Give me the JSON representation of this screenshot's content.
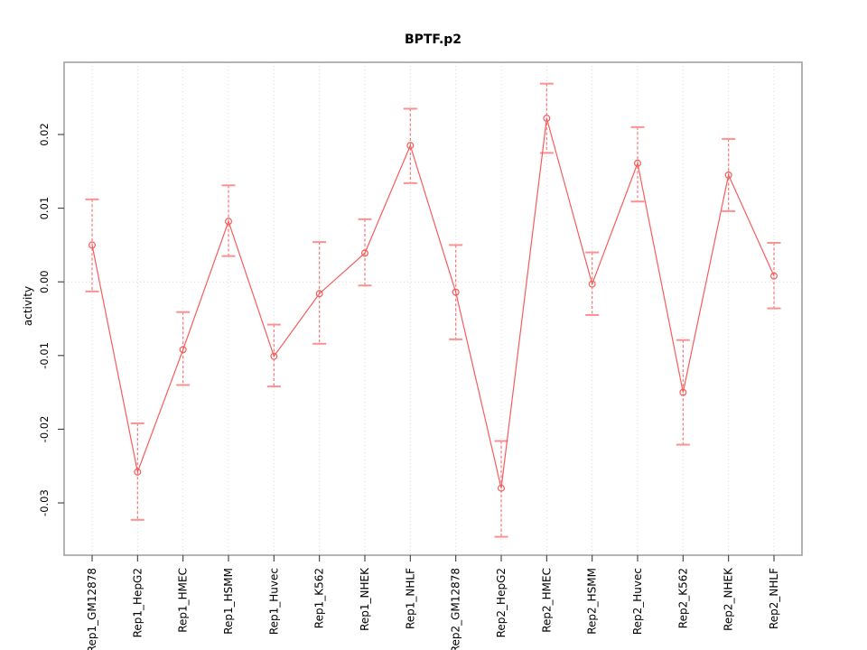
{
  "title": "BPTF.p2",
  "chart_data": {
    "type": "line",
    "title": "BPTF.p2",
    "xlabel": "",
    "ylabel": "activity",
    "categories": [
      "Rep1_GM12878",
      "Rep1_HepG2",
      "Rep1_HMEC",
      "Rep1_HSMM",
      "Rep1_Huvec",
      "Rep1_K562",
      "Rep1_NHEK",
      "Rep1_NHLF",
      "Rep2_GM12878",
      "Rep2_HepG2",
      "Rep2_HMEC",
      "Rep2_HSMM",
      "Rep2_Huvec",
      "Rep2_K562",
      "Rep2_NHEK",
      "Rep2_NHLF"
    ],
    "series": [
      {
        "name": "activity",
        "marker": "open-circle",
        "values": [
          0.005,
          -0.0258,
          -0.0092,
          0.0082,
          -0.0101,
          -0.0016,
          0.0039,
          0.0185,
          -0.0014,
          -0.028,
          0.0222,
          -0.0003,
          0.0161,
          -0.015,
          0.0145,
          0.0008
        ],
        "error_high": [
          0.0112,
          -0.0192,
          -0.0041,
          0.0131,
          -0.0058,
          0.0054,
          0.0085,
          0.0235,
          0.005,
          -0.0216,
          0.0269,
          0.004,
          0.021,
          -0.0079,
          0.0194,
          0.0053
        ],
        "error_low": [
          -0.0013,
          -0.0323,
          -0.014,
          0.0035,
          -0.0142,
          -0.0084,
          -0.0005,
          0.0134,
          -0.0078,
          -0.0346,
          0.0175,
          -0.0045,
          0.0109,
          -0.0221,
          0.0096,
          -0.0036
        ]
      }
    ],
    "ylim": [
      -0.0371,
      0.0298
    ],
    "yticks": [
      -0.03,
      -0.02,
      -0.01,
      0,
      0.01,
      0.02
    ],
    "ytick_labels": [
      "-0.03",
      "-0.02",
      "-0.01",
      "0.00",
      "0.01",
      "0.02"
    ],
    "grid": {
      "vertical_at_each_category": true,
      "horizontal_at_zero": true,
      "style": "dotted"
    },
    "legend": "none",
    "colors": {
      "line": "#f75c5c",
      "error_bar": "#f97676",
      "error_cap": "#fa9191",
      "grid": "#d9d9d9",
      "box": "#9b9b9b",
      "tick": "#3c3c3c",
      "text": "#000000",
      "background": "#ffffff"
    }
  }
}
